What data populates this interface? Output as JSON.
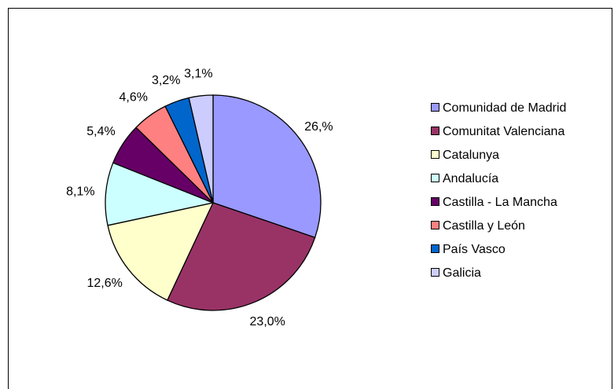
{
  "chart_data": {
    "type": "pie",
    "categories": [
      "Comunidad de Madrid",
      "Comunitat Valenciana",
      "Catalunya",
      "Andalucía",
      "Castilla - La Mancha",
      "Castilla y León",
      "País Vasco",
      "Galicia"
    ],
    "values": [
      26,
      23.0,
      12.6,
      8.1,
      5.4,
      4.6,
      3.2,
      3.1
    ],
    "value_labels": [
      "26,%",
      "23,0%",
      "12,6%",
      "8,1%",
      "5,4%",
      "4,6%",
      "3,2%",
      "3,1%"
    ],
    "colors": [
      "#9999ff",
      "#993366",
      "#ffffcc",
      "#ccffff",
      "#660066",
      "#ff8080",
      "#0066cc",
      "#ccccff"
    ],
    "legend": "right"
  }
}
